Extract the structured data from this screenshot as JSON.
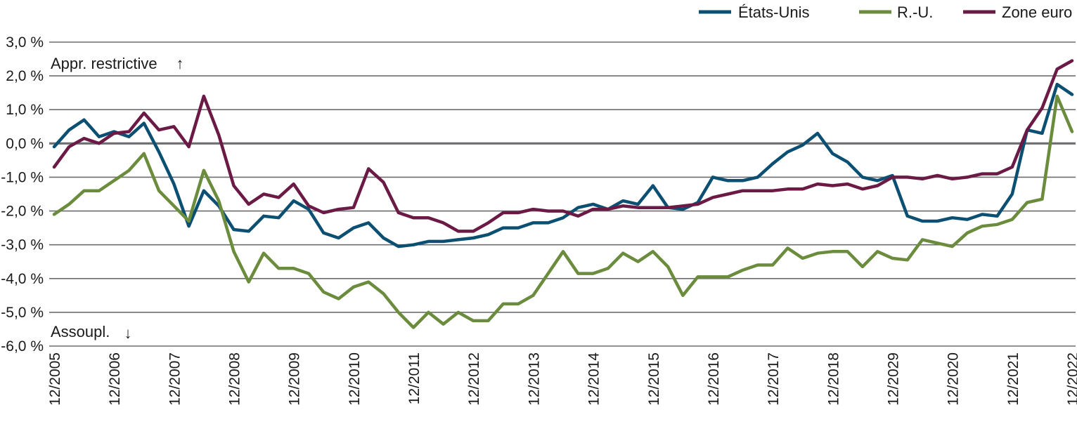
{
  "chart_data": {
    "type": "line",
    "title": "",
    "xlabel": "",
    "ylabel": "",
    "ylim": [
      -6.0,
      3.0
    ],
    "yticks": [
      3.0,
      2.0,
      1.0,
      0.0,
      -1.0,
      -2.0,
      -3.0,
      -4.0,
      -5.0,
      -6.0
    ],
    "ytick_labels": [
      "3,0 %",
      "2,0 %",
      "1,0 %",
      "0,0 %",
      "-1,0 %",
      "-2,0 %",
      "-3,0 %",
      "-4,0 %",
      "-5,0 %",
      "-6,0 %"
    ],
    "xticks": [
      "12/2005",
      "12/2006",
      "12/2007",
      "12/2008",
      "12/2009",
      "12/2010",
      "12/2011",
      "12/2012",
      "12/2013",
      "12/2014",
      "12/2015",
      "12/2016",
      "12/2017",
      "12/2018",
      "12/2029",
      "12/2020",
      "12/2021",
      "12/2022"
    ],
    "grid": true,
    "legend_position": "top-right",
    "annotations": {
      "top": "Appr. restrictive",
      "top_arrow": "↑",
      "bottom": "Assoupl.",
      "bottom_arrow": "↓"
    },
    "series": [
      {
        "name": "États-Unis",
        "color": "#0b5072",
        "values": [
          -0.1,
          0.4,
          0.7,
          0.2,
          0.35,
          0.2,
          0.6,
          -0.25,
          -1.2,
          -2.45,
          -1.4,
          -1.85,
          -2.55,
          -2.6,
          -2.15,
          -2.2,
          -1.7,
          -1.95,
          -2.65,
          -2.8,
          -2.5,
          -2.35,
          -2.8,
          -3.05,
          -3.0,
          -2.9,
          -2.9,
          -2.85,
          -2.8,
          -2.7,
          -2.5,
          -2.5,
          -2.35,
          -2.35,
          -2.2,
          -1.9,
          -1.8,
          -1.95,
          -1.7,
          -1.8,
          -1.25,
          -1.9,
          -1.95,
          -1.75,
          -1.0,
          -1.1,
          -1.1,
          -1.0,
          -0.6,
          -0.25,
          -0.05,
          0.3,
          -0.3,
          -0.55,
          -1.0,
          -1.1,
          -0.95,
          -2.15,
          -2.3,
          -2.3,
          -2.2,
          -2.25,
          -2.1,
          -2.15,
          -1.5,
          0.4,
          0.3,
          1.75,
          1.45
        ]
      },
      {
        "name": "R.-U.",
        "color": "#6b8c3c",
        "values": [
          -2.1,
          -1.8,
          -1.4,
          -1.4,
          -1.1,
          -0.8,
          -0.3,
          -1.4,
          -1.85,
          -2.3,
          -0.8,
          -1.7,
          -3.2,
          -4.1,
          -3.25,
          -3.7,
          -3.7,
          -3.85,
          -4.4,
          -4.6,
          -4.25,
          -4.1,
          -4.45,
          -5.0,
          -5.45,
          -5.0,
          -5.35,
          -5.0,
          -5.25,
          -5.25,
          -4.75,
          -4.75,
          -4.5,
          -3.85,
          -3.2,
          -3.85,
          -3.85,
          -3.7,
          -3.25,
          -3.5,
          -3.2,
          -3.65,
          -4.5,
          -3.95,
          -3.95,
          -3.95,
          -3.75,
          -3.6,
          -3.6,
          -3.1,
          -3.4,
          -3.25,
          -3.2,
          -3.2,
          -3.65,
          -3.2,
          -3.4,
          -3.45,
          -2.85,
          -2.95,
          -3.05,
          -2.65,
          -2.45,
          -2.4,
          -2.25,
          -1.75,
          -1.65,
          1.4,
          0.35
        ]
      },
      {
        "name": "Zone euro",
        "color": "#6a1a45",
        "values": [
          -0.7,
          -0.1,
          0.15,
          0.0,
          0.3,
          0.35,
          0.9,
          0.4,
          0.5,
          -0.1,
          1.4,
          0.25,
          -1.25,
          -1.8,
          -1.5,
          -1.6,
          -1.2,
          -1.85,
          -2.05,
          -1.95,
          -1.9,
          -0.75,
          -1.15,
          -2.05,
          -2.2,
          -2.2,
          -2.35,
          -2.6,
          -2.6,
          -2.35,
          -2.05,
          -2.05,
          -1.95,
          -2.0,
          -2.0,
          -2.15,
          -1.95,
          -1.95,
          -1.85,
          -1.9,
          -1.9,
          -1.9,
          -1.85,
          -1.8,
          -1.6,
          -1.5,
          -1.4,
          -1.4,
          -1.4,
          -1.35,
          -1.35,
          -1.2,
          -1.25,
          -1.2,
          -1.35,
          -1.25,
          -1.0,
          -1.0,
          -1.05,
          -0.95,
          -1.05,
          -1.0,
          -0.9,
          -0.9,
          -0.7,
          0.4,
          1.05,
          2.2,
          2.45
        ]
      }
    ]
  }
}
